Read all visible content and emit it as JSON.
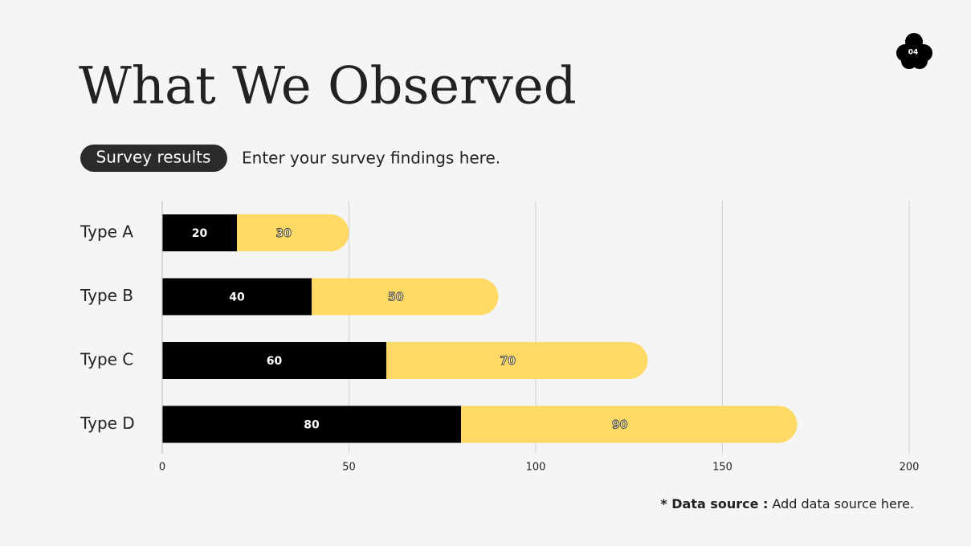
{
  "page_number": "04",
  "title": "What We Observed",
  "badge": "Survey results",
  "subtitle": "Enter your survey findings here.",
  "source_label": "* Data source :",
  "source_text": "Add data source here.",
  "chart_data": {
    "type": "bar",
    "orientation": "horizontal",
    "stacked": true,
    "categories": [
      "Type A",
      "Type B",
      "Type C",
      "Type D"
    ],
    "series": [
      {
        "color": "#000000",
        "values": [
          20,
          40,
          60,
          80
        ]
      },
      {
        "color": "#ffd966",
        "values": [
          30,
          50,
          70,
          90
        ]
      }
    ],
    "xlim": [
      0,
      200
    ],
    "xticks": [
      0,
      50,
      100,
      150,
      200
    ],
    "grid": true
  }
}
